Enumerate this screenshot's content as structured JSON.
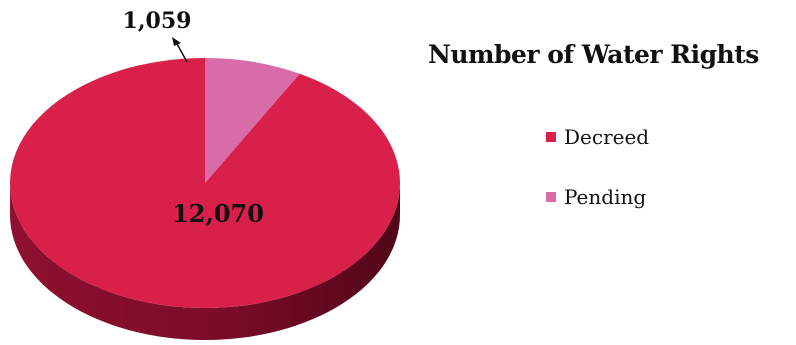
{
  "chart_data": {
    "type": "pie",
    "title": "Number of Water Rights",
    "categories": [
      "Decreed",
      "Pending"
    ],
    "values": [
      12070,
      1059
    ],
    "data_labels": [
      "12,070",
      "1,059"
    ],
    "colors": [
      "#d8204a",
      "#d86ca8"
    ],
    "legend_position": "right",
    "three_d": true
  }
}
